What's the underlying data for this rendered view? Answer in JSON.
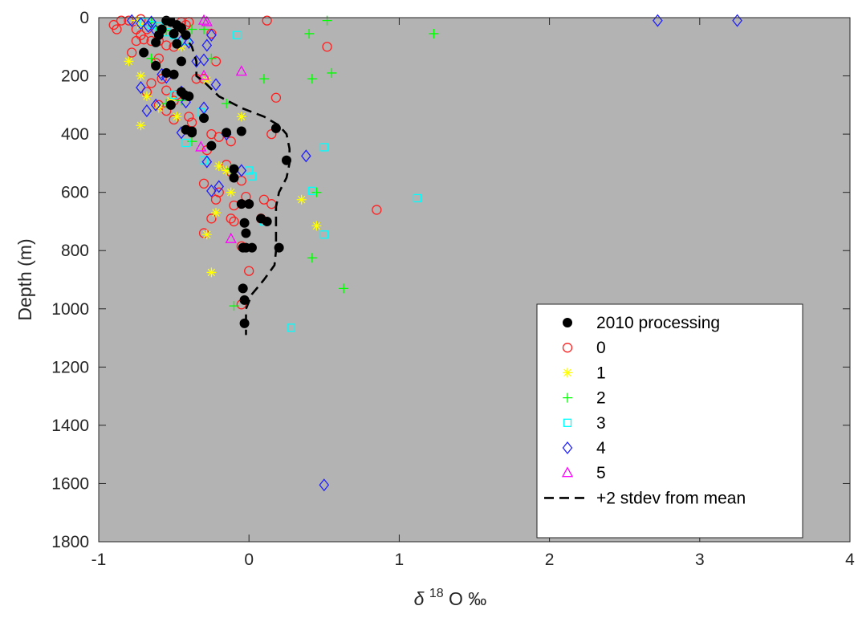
{
  "chart_data": {
    "type": "scatter",
    "title": "",
    "xlabel_prefix": "δ",
    "xlabel_sup": "18",
    "xlabel_suffix": "O ‰",
    "ylabel": "Depth (m)",
    "xlim": [
      -1,
      4
    ],
    "ylim": [
      0,
      1800
    ],
    "y_reversed": true,
    "xticks": [
      -1,
      0,
      1,
      2,
      3,
      4
    ],
    "yticks": [
      0,
      200,
      400,
      600,
      800,
      1000,
      1200,
      1400,
      1600,
      1800
    ],
    "grid": false,
    "legend_position": "bottom-right",
    "plot_background": "#b3b3b3",
    "series": [
      {
        "name": "2010 processing",
        "marker": "filled-circle",
        "color": "#000000",
        "points": [
          [
            -0.55,
            10
          ],
          [
            -0.52,
            15
          ],
          [
            -0.48,
            25
          ],
          [
            -0.45,
            35
          ],
          [
            -0.58,
            40
          ],
          [
            -0.5,
            55
          ],
          [
            -0.6,
            60
          ],
          [
            -0.42,
            60
          ],
          [
            -0.62,
            85
          ],
          [
            -0.48,
            90
          ],
          [
            -0.7,
            120
          ],
          [
            -0.45,
            150
          ],
          [
            -0.62,
            165
          ],
          [
            -0.55,
            190
          ],
          [
            -0.5,
            195
          ],
          [
            -0.45,
            255
          ],
          [
            -0.43,
            265
          ],
          [
            -0.4,
            270
          ],
          [
            -0.52,
            300
          ],
          [
            -0.3,
            345
          ],
          [
            -0.42,
            385
          ],
          [
            -0.38,
            390
          ],
          [
            -0.05,
            390
          ],
          [
            -0.15,
            395
          ],
          [
            -0.38,
            395
          ],
          [
            0.18,
            380
          ],
          [
            -0.25,
            440
          ],
          [
            0.25,
            490
          ],
          [
            -0.1,
            520
          ],
          [
            -0.1,
            550
          ],
          [
            0,
            640
          ],
          [
            -0.05,
            640
          ],
          [
            0.08,
            690
          ],
          [
            -0.03,
            705
          ],
          [
            0.12,
            700
          ],
          [
            -0.02,
            740
          ],
          [
            0.2,
            790
          ],
          [
            -0.02,
            790
          ],
          [
            -0.04,
            790
          ],
          [
            0.02,
            790
          ],
          [
            -0.04,
            930
          ],
          [
            -0.03,
            970
          ],
          [
            -0.03,
            1050
          ]
        ]
      },
      {
        "name": "0",
        "marker": "open-circle",
        "color": "#ff2020",
        "points": [
          [
            -0.9,
            25
          ],
          [
            -0.85,
            10
          ],
          [
            -0.8,
            10
          ],
          [
            -0.88,
            40
          ],
          [
            -0.75,
            40
          ],
          [
            -0.72,
            60
          ],
          [
            -0.7,
            75
          ],
          [
            -0.65,
            80
          ],
          [
            -0.6,
            80
          ],
          [
            -0.55,
            95
          ],
          [
            -0.5,
            100
          ],
          [
            -0.45,
            15
          ],
          [
            -0.4,
            15
          ],
          [
            0.12,
            10
          ],
          [
            0.52,
            100
          ],
          [
            -0.78,
            120
          ],
          [
            -0.75,
            80
          ],
          [
            -0.6,
            140
          ],
          [
            -0.62,
            155
          ],
          [
            -0.58,
            210
          ],
          [
            -0.65,
            225
          ],
          [
            -0.55,
            250
          ],
          [
            -0.68,
            255
          ],
          [
            -0.48,
            265
          ],
          [
            -0.5,
            285
          ],
          [
            -0.6,
            300
          ],
          [
            -0.55,
            320
          ],
          [
            -0.4,
            340
          ],
          [
            -0.5,
            350
          ],
          [
            -0.38,
            360
          ],
          [
            -0.35,
            210
          ],
          [
            -0.3,
            210
          ],
          [
            -0.22,
            150
          ],
          [
            -0.25,
            55
          ],
          [
            0.18,
            275
          ],
          [
            -0.2,
            410
          ],
          [
            -0.12,
            425
          ],
          [
            -0.28,
            455
          ],
          [
            -0.25,
            400
          ],
          [
            0.15,
            400
          ],
          [
            -0.15,
            505
          ],
          [
            -0.12,
            530
          ],
          [
            -0.05,
            560
          ],
          [
            -0.3,
            570
          ],
          [
            -0.2,
            600
          ],
          [
            -0.22,
            625
          ],
          [
            -0.1,
            645
          ],
          [
            -0.02,
            615
          ],
          [
            0.1,
            625
          ],
          [
            0.15,
            640
          ],
          [
            0.85,
            660
          ],
          [
            0.08,
            690
          ],
          [
            -0.12,
            690
          ],
          [
            -0.25,
            690
          ],
          [
            -0.1,
            700
          ],
          [
            -0.3,
            740
          ],
          [
            -0.05,
            785
          ],
          [
            -0.05,
            985
          ],
          [
            0,
            870
          ],
          [
            -0.72,
            5
          ],
          [
            -0.68,
            40
          ],
          [
            -0.42,
            25
          ]
        ]
      },
      {
        "name": "1",
        "marker": "asterisk",
        "color": "#ffff00",
        "points": [
          [
            -0.75,
            10
          ],
          [
            -0.72,
            25
          ],
          [
            -0.8,
            150
          ],
          [
            -0.62,
            165
          ],
          [
            -0.72,
            200
          ],
          [
            -0.68,
            270
          ],
          [
            -0.52,
            285
          ],
          [
            -0.6,
            310
          ],
          [
            -0.72,
            370
          ],
          [
            -0.48,
            340
          ],
          [
            -0.45,
            100
          ],
          [
            -0.28,
            215
          ],
          [
            -0.2,
            510
          ],
          [
            -0.15,
            525
          ],
          [
            -0.12,
            600
          ],
          [
            -0.22,
            670
          ],
          [
            -0.28,
            745
          ],
          [
            0.35,
            625
          ],
          [
            0.45,
            715
          ],
          [
            -0.25,
            875
          ],
          [
            -0.05,
            340
          ]
        ]
      },
      {
        "name": "2",
        "marker": "plus",
        "color": "#00ff00",
        "points": [
          [
            -0.65,
            15
          ],
          [
            -0.62,
            30
          ],
          [
            -0.65,
            140
          ],
          [
            -0.38,
            40
          ],
          [
            -0.3,
            40
          ],
          [
            -0.25,
            140
          ],
          [
            -0.15,
            295
          ],
          [
            -0.45,
            285
          ],
          [
            -0.38,
            425
          ],
          [
            -0.55,
            295
          ],
          [
            0.52,
            10
          ],
          [
            0.4,
            55
          ],
          [
            1.23,
            55
          ],
          [
            0.55,
            190
          ],
          [
            0.42,
            210
          ],
          [
            0.1,
            210
          ],
          [
            -0.12,
            520
          ],
          [
            0.45,
            600
          ],
          [
            0.42,
            825
          ],
          [
            0.63,
            930
          ],
          [
            -0.1,
            990
          ],
          [
            -0.55,
            45
          ]
        ]
      },
      {
        "name": "3",
        "marker": "open-square",
        "color": "#00ffff",
        "points": [
          [
            -0.7,
            15
          ],
          [
            -0.65,
            25
          ],
          [
            -0.6,
            30
          ],
          [
            -0.55,
            50
          ],
          [
            -0.5,
            60
          ],
          [
            -0.42,
            80
          ],
          [
            -0.08,
            60
          ],
          [
            -0.5,
            265
          ],
          [
            -0.32,
            325
          ],
          [
            -0.42,
            430
          ],
          [
            0.5,
            445
          ],
          [
            0.0,
            525
          ],
          [
            0.02,
            545
          ],
          [
            0.42,
            595
          ],
          [
            1.12,
            620
          ],
          [
            0.1,
            700
          ],
          [
            0.5,
            745
          ],
          [
            0.28,
            1065
          ],
          [
            -0.3,
            490
          ]
        ]
      },
      {
        "name": "4",
        "marker": "open-diamond",
        "color": "#2020ff",
        "points": [
          [
            -0.78,
            10
          ],
          [
            -0.72,
            20
          ],
          [
            -0.67,
            30
          ],
          [
            -0.62,
            45
          ],
          [
            2.72,
            10
          ],
          [
            3.25,
            10
          ],
          [
            -0.45,
            80
          ],
          [
            -0.4,
            85
          ],
          [
            -0.35,
            150
          ],
          [
            -0.3,
            145
          ],
          [
            -0.25,
            60
          ],
          [
            -0.28,
            95
          ],
          [
            -0.22,
            230
          ],
          [
            -0.58,
            195
          ],
          [
            -0.55,
            205
          ],
          [
            -0.45,
            255
          ],
          [
            -0.42,
            290
          ],
          [
            -0.62,
            300
          ],
          [
            -0.68,
            320
          ],
          [
            -0.72,
            240
          ],
          [
            -0.3,
            310
          ],
          [
            -0.45,
            395
          ],
          [
            -0.15,
            400
          ],
          [
            0.38,
            475
          ],
          [
            -0.28,
            495
          ],
          [
            -0.05,
            525
          ],
          [
            -0.25,
            595
          ],
          [
            -0.2,
            580
          ],
          [
            0.5,
            1605
          ],
          [
            -0.65,
            15
          ]
        ]
      },
      {
        "name": "5",
        "marker": "open-triangle",
        "color": "#ff00ff",
        "points": [
          [
            -0.3,
            10
          ],
          [
            -0.28,
            15
          ],
          [
            -0.05,
            185
          ],
          [
            -0.3,
            200
          ],
          [
            -0.32,
            445
          ],
          [
            -0.12,
            760
          ]
        ]
      },
      {
        "name": "+2 stdev from mean",
        "marker": "dashed-line",
        "color": "#000000",
        "points": [
          [
            -0.5,
            0
          ],
          [
            -0.5,
            20
          ],
          [
            -0.47,
            40
          ],
          [
            -0.42,
            70
          ],
          [
            -0.38,
            100
          ],
          [
            -0.35,
            150
          ],
          [
            -0.35,
            200
          ],
          [
            -0.3,
            220
          ],
          [
            -0.2,
            270
          ],
          [
            -0.05,
            310
          ],
          [
            0.1,
            340
          ],
          [
            0.2,
            370
          ],
          [
            0.25,
            400
          ],
          [
            0.27,
            450
          ],
          [
            0.27,
            500
          ],
          [
            0.25,
            550
          ],
          [
            0.2,
            600
          ],
          [
            0.18,
            650
          ],
          [
            0.18,
            700
          ],
          [
            0.18,
            750
          ],
          [
            0.18,
            800
          ],
          [
            0.17,
            850
          ],
          [
            0.1,
            900
          ],
          [
            0.02,
            950
          ],
          [
            -0.02,
            1000
          ],
          [
            -0.02,
            1050
          ],
          [
            -0.02,
            1090
          ]
        ]
      }
    ]
  }
}
